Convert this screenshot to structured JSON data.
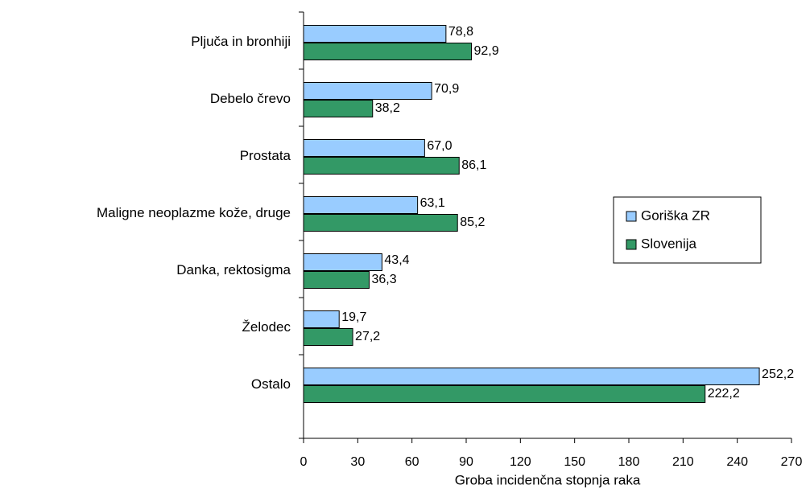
{
  "chart_data": {
    "type": "bar",
    "orientation": "horizontal",
    "x_label": "Groba incidenčna stopnja raka",
    "categories": [
      "Pljuča in bronhiji",
      "Debelo črevo",
      "Prostata",
      "Maligne neoplazme kože, druge",
      "Danka, rektosigma",
      "Želodec",
      "Ostalo"
    ],
    "series": [
      {
        "name": "Goriška ZR",
        "color": "#99ccff",
        "values": [
          78.8,
          70.9,
          67.0,
          63.1,
          43.4,
          19.7,
          252.2
        ],
        "value_labels": [
          "78,8",
          "70,9",
          "67,0",
          "63,1",
          "43,4",
          "19,7",
          "252,2"
        ]
      },
      {
        "name": "Slovenija",
        "color": "#339966",
        "values": [
          92.9,
          38.2,
          86.1,
          85.2,
          36.3,
          27.2,
          222.2
        ],
        "value_labels": [
          "92,9",
          "38,2",
          "86,1",
          "85,2",
          "36,3",
          "27,2",
          "222,2"
        ]
      }
    ],
    "xlim": [
      0,
      270
    ],
    "xticks": [
      0,
      30,
      60,
      90,
      120,
      150,
      180,
      210,
      240,
      270
    ],
    "legend": "right",
    "grid": false
  }
}
